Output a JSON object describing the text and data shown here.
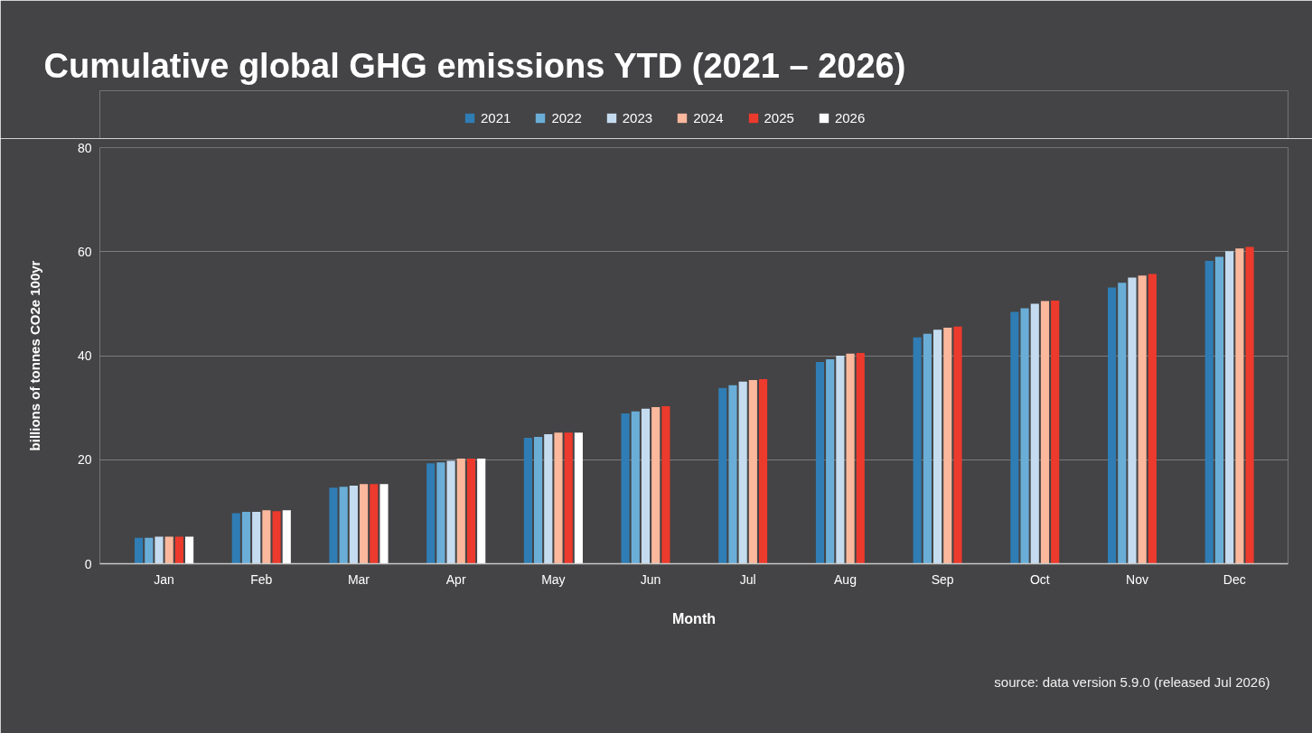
{
  "chart_data": {
    "type": "bar",
    "title": "Cumulative global GHG emissions YTD (2021 – 2026)",
    "xlabel": "Month",
    "ylabel": "billions of tonnes CO2e 100yr",
    "categories": [
      "Jan",
      "Feb",
      "Mar",
      "Apr",
      "May",
      "Jun",
      "Jul",
      "Aug",
      "Sep",
      "Oct",
      "Nov",
      "Dec"
    ],
    "series": [
      {
        "name": "2021",
        "color": "#2f7db4",
        "values": [
          5.0,
          9.7,
          14.6,
          19.3,
          24.2,
          28.9,
          33.8,
          38.8,
          43.5,
          48.4,
          53.1,
          58.2
        ]
      },
      {
        "name": "2022",
        "color": "#6aaed8",
        "values": [
          5.0,
          10.0,
          14.8,
          19.5,
          24.4,
          29.3,
          34.3,
          39.3,
          44.2,
          49.1,
          54.0,
          59.0
        ]
      },
      {
        "name": "2023",
        "color": "#c5dcf0",
        "values": [
          5.2,
          10.0,
          15.0,
          19.8,
          24.9,
          29.8,
          35.0,
          40.0,
          45.0,
          50.0,
          55.0,
          60.1
        ]
      },
      {
        "name": "2024",
        "color": "#fbb89d",
        "values": [
          5.2,
          10.3,
          15.3,
          20.2,
          25.2,
          30.1,
          35.3,
          40.4,
          45.4,
          50.5,
          55.4,
          60.6
        ]
      },
      {
        "name": "2025",
        "color": "#ec3a2d",
        "values": [
          5.2,
          10.1,
          15.3,
          20.2,
          25.2,
          30.3,
          35.5,
          40.5,
          45.6,
          50.6,
          55.7,
          60.9
        ]
      },
      {
        "name": "2026",
        "color": "#ffffff",
        "values": [
          5.2,
          10.3,
          15.3,
          20.2,
          25.2,
          null,
          null,
          null,
          null,
          null,
          null,
          null
        ]
      }
    ],
    "ylim": [
      0,
      80
    ],
    "yticks": [
      0,
      20,
      40,
      60,
      80
    ],
    "grid": "y",
    "legend": "top",
    "annotations": [
      "source: data version 5.9.0 (released Jul 2026)"
    ]
  }
}
